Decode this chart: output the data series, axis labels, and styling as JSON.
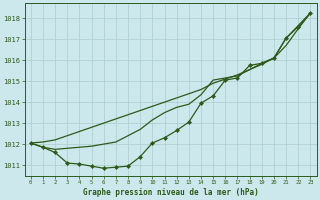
{
  "title": "Graphe pression niveau de la mer (hPa)",
  "background_color": "#cce8ec",
  "grid_color": "#aacccc",
  "line_color": "#2d5a1b",
  "xlim": [
    -0.5,
    23.5
  ],
  "ylim": [
    1010.5,
    1018.7
  ],
  "yticks": [
    1011,
    1012,
    1013,
    1014,
    1015,
    1016,
    1017,
    1018
  ],
  "xticks": [
    0,
    1,
    2,
    3,
    4,
    5,
    6,
    7,
    8,
    9,
    10,
    11,
    12,
    13,
    14,
    15,
    16,
    17,
    18,
    19,
    20,
    21,
    22,
    23
  ],
  "line_smooth": [
    1012.05,
    1011.85,
    1011.75,
    1011.8,
    1011.85,
    1011.9,
    1012.0,
    1012.1,
    1012.4,
    1012.7,
    1013.15,
    1013.5,
    1013.75,
    1013.9,
    1014.35,
    1015.05,
    1015.15,
    1015.25,
    1015.55,
    1015.85,
    1016.1,
    1017.05,
    1017.65,
    1018.25
  ],
  "line_marker_dip": [
    1012.05,
    1011.85,
    1011.6,
    1011.1,
    1011.05,
    1010.95,
    1010.85,
    1010.9,
    1010.95,
    1011.4,
    1012.05,
    1012.3,
    1012.65,
    1013.05,
    1013.95,
    1014.3,
    1015.05,
    1015.15,
    1015.75,
    1015.85,
    1016.1,
    1017.05,
    1017.6,
    1018.25
  ],
  "line_straight": [
    1012.05,
    1012.1,
    1012.2,
    1012.4,
    1012.6,
    1012.8,
    1013.0,
    1013.2,
    1013.4,
    1013.6,
    1013.8,
    1014.0,
    1014.2,
    1014.4,
    1014.6,
    1014.9,
    1015.1,
    1015.3,
    1015.55,
    1015.8,
    1016.1,
    1016.7,
    1017.5,
    1018.25
  ]
}
